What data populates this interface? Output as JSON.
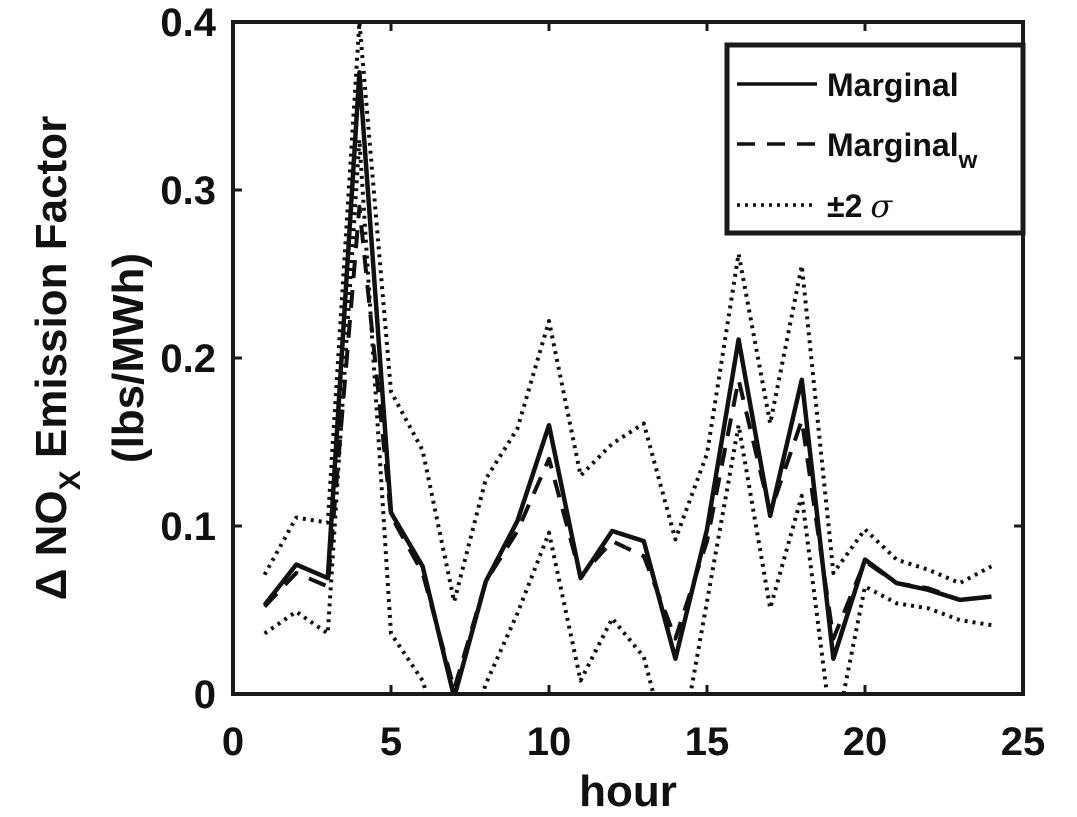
{
  "chart_data": {
    "type": "line",
    "title": "",
    "xlabel": "hour",
    "ylabel_symbol": "Δ",
    "ylabel_main": " NO",
    "ylabel_sub": "X",
    "ylabel_rest": " Emission Factor",
    "ylabel_units": "(lbs/MWh)",
    "xlim": [
      0,
      25
    ],
    "ylim": [
      0,
      0.4
    ],
    "xticks": [
      0,
      5,
      10,
      15,
      20,
      25
    ],
    "xtick_labels": [
      "0",
      "5",
      "10",
      "15",
      "20",
      "25"
    ],
    "yticks": [
      0,
      0.1,
      0.2,
      0.3,
      0.4
    ],
    "ytick_labels": [
      "0",
      "0.1",
      "0.2",
      "0.3",
      "0.4"
    ],
    "grid": false,
    "legend_position": "top-right",
    "x": [
      1,
      2,
      3,
      4,
      5,
      6,
      7,
      8,
      9,
      10,
      11,
      12,
      13,
      14,
      15,
      16,
      17,
      18,
      19,
      20,
      21,
      22,
      23,
      24
    ],
    "series": [
      {
        "name": "Marginal",
        "style": "solid",
        "values": [
          0.053,
          0.077,
          0.069,
          0.37,
          0.108,
          0.076,
          -0.002,
          0.067,
          0.103,
          0.16,
          0.069,
          0.097,
          0.091,
          0.021,
          0.098,
          0.211,
          0.106,
          0.187,
          0.021,
          0.08,
          0.066,
          0.062,
          0.056,
          0.058
        ]
      },
      {
        "name": "Marginal",
        "name_sub": "w",
        "style": "dashed",
        "values": [
          0.052,
          0.072,
          0.064,
          0.29,
          0.106,
          0.072,
          0.003,
          0.067,
          0.097,
          0.14,
          0.07,
          0.091,
          0.082,
          0.033,
          0.091,
          0.187,
          0.108,
          0.163,
          0.033,
          0.079,
          0.066,
          0.063,
          0.056,
          0.058
        ]
      },
      {
        "name": "±2",
        "name_symbol": "σ",
        "style": "dotted",
        "values": [
          0.071,
          0.105,
          0.102,
          0.4,
          0.18,
          0.145,
          0.055,
          0.128,
          0.158,
          0.222,
          0.13,
          0.149,
          0.161,
          0.092,
          0.143,
          0.262,
          0.161,
          0.255,
          0.072,
          0.098,
          0.08,
          0.074,
          0.066,
          0.076
        ]
      },
      {
        "name": "",
        "style": "dotted",
        "values": [
          0.036,
          0.049,
          0.036,
          0.33,
          0.036,
          0.008,
          -0.055,
          0.006,
          0.048,
          0.096,
          0.008,
          0.045,
          0.022,
          -0.05,
          0.055,
          0.16,
          0.051,
          0.118,
          -0.03,
          0.064,
          0.054,
          0.051,
          0.044,
          0.041
        ]
      }
    ]
  },
  "colors": {
    "line": "#111111",
    "axis": "#1a1a1a",
    "background": "#ffffff"
  }
}
